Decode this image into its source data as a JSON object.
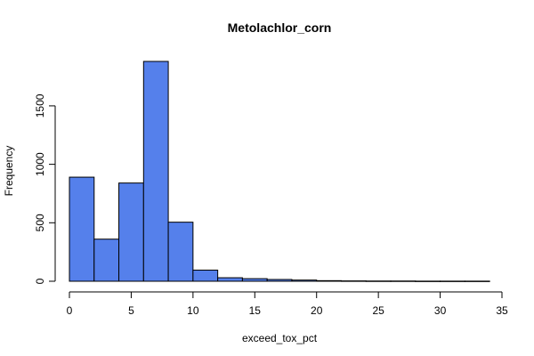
{
  "chart_data": {
    "type": "bar",
    "title": "Metolachlor_corn",
    "xlabel": "exceed_tox_pct",
    "ylabel": "Frequency",
    "bin_edges": [
      0,
      2,
      4,
      6,
      8,
      10,
      12,
      14,
      16,
      18,
      20,
      22,
      24,
      26,
      28,
      30,
      32,
      34
    ],
    "values": [
      890,
      360,
      840,
      1880,
      505,
      95,
      30,
      22,
      15,
      10,
      5,
      3,
      2,
      2,
      1,
      1,
      1
    ],
    "xlim": [
      0,
      35
    ],
    "ylim": [
      0,
      1880
    ],
    "x_ticks": [
      0,
      5,
      10,
      15,
      20,
      25,
      30,
      35
    ],
    "y_ticks": [
      0,
      500,
      1000,
      1500
    ],
    "bar_color": "#5580EB",
    "grid": false
  }
}
